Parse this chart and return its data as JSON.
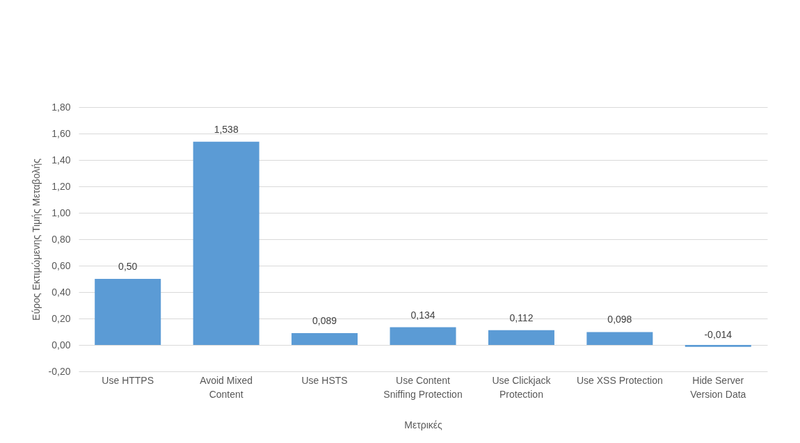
{
  "chart_data": {
    "type": "bar",
    "xlabel": "Μετρικές",
    "ylabel": "Εύρος Εκτιμώμενης Τιμής Μεταβολής",
    "categories": [
      "Use HTTPS",
      "Avoid Mixed Content",
      "Use HSTS",
      "Use Content Sniffing Protection",
      "Use Clickjack Protection",
      "Use XSS Protection",
      "Hide Server Version Data"
    ],
    "values": [
      0.5,
      1.538,
      0.089,
      0.134,
      0.112,
      0.098,
      -0.014
    ],
    "value_labels": [
      "0,50",
      "1,538",
      "0,089",
      "0,134",
      "0,112",
      "0,098",
      "-0,014"
    ],
    "color": "#5b9bd5",
    "ylim": [
      -0.2,
      1.8
    ],
    "yticks": [
      {
        "value": -0.2,
        "label": "-0,20"
      },
      {
        "value": 0,
        "label": "0,00"
      },
      {
        "value": 0.2,
        "label": "0,20"
      },
      {
        "value": 0.4,
        "label": "0,40"
      },
      {
        "value": 0.6,
        "label": "0,60"
      },
      {
        "value": 0.8,
        "label": "0,80"
      },
      {
        "value": 1.0,
        "label": "1,00"
      },
      {
        "value": 1.2,
        "label": "1,20"
      },
      {
        "value": 1.4,
        "label": "1,40"
      },
      {
        "value": 1.6,
        "label": "1,60"
      },
      {
        "value": 1.8,
        "label": "1,80"
      }
    ],
    "grid": "y"
  }
}
